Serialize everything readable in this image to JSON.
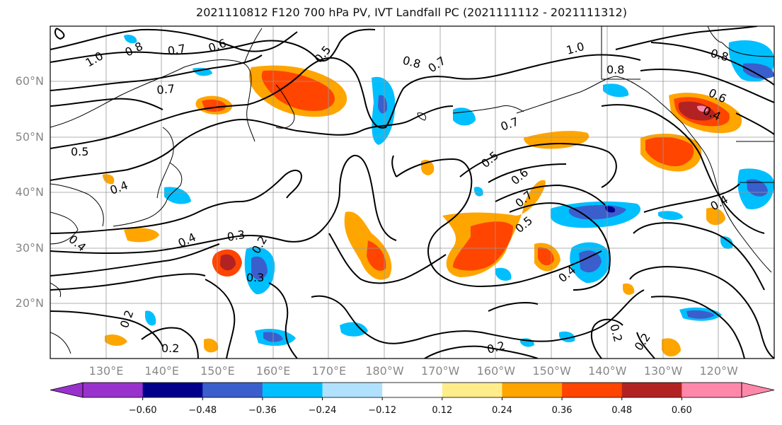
{
  "title": "2021110812 F120 700 hPa PV, IVT Landfall PC (2021111112 - 2021111312)",
  "lat_labels": [
    {
      "label": "60°N",
      "lat": 60
    },
    {
      "label": "50°N",
      "lat": 50
    },
    {
      "label": "40°N",
      "lat": 40
    },
    {
      "label": "30°N",
      "lat": 30
    },
    {
      "label": "20°N",
      "lat": 20
    }
  ],
  "lon_labels": [
    "130°E",
    "140°E",
    "150°E",
    "160°E",
    "170°E",
    "180°W",
    "170°W",
    "160°W",
    "150°W",
    "140°W",
    "130°W",
    "120°W"
  ],
  "colorbar": {
    "ticks": [
      "−0.60",
      "−0.48",
      "−0.36",
      "−0.24",
      "−0.12",
      "0.12",
      "0.24",
      "0.36",
      "0.48",
      "0.60"
    ],
    "colors": [
      "#9932cc",
      "#00008b",
      "#3a5fcd",
      "#00bfff",
      "#b0e2ff",
      "#ffffff",
      "#ffec8b",
      "#ffa500",
      "#ff4500",
      "#b22222",
      "#ff88aa"
    ]
  },
  "contour_labels": [
    {
      "text": "1.0"
    },
    {
      "text": "0.8"
    },
    {
      "text": "0.7"
    },
    {
      "text": "0.6"
    },
    {
      "text": "0.5"
    },
    {
      "text": "0.8"
    },
    {
      "text": "0.7"
    },
    {
      "text": "1.0"
    },
    {
      "text": "0.8"
    },
    {
      "text": "0.8"
    },
    {
      "text": "0.7"
    },
    {
      "text": "0.6"
    },
    {
      "text": "0.4"
    },
    {
      "text": "0.5"
    },
    {
      "text": "0.4"
    },
    {
      "text": "0.7"
    },
    {
      "text": "0.5"
    },
    {
      "text": "0.6"
    },
    {
      "text": "0.7"
    },
    {
      "text": "0.5"
    },
    {
      "text": "0.4"
    },
    {
      "text": "0.4"
    },
    {
      "text": "0.3"
    },
    {
      "text": "0.2"
    },
    {
      "text": "0.3"
    },
    {
      "text": "0.4"
    },
    {
      "text": "0.4"
    },
    {
      "text": "0.2"
    },
    {
      "text": "0.2"
    },
    {
      "text": "0.2"
    },
    {
      "text": "0.2"
    },
    {
      "text": "0.2"
    }
  ]
}
